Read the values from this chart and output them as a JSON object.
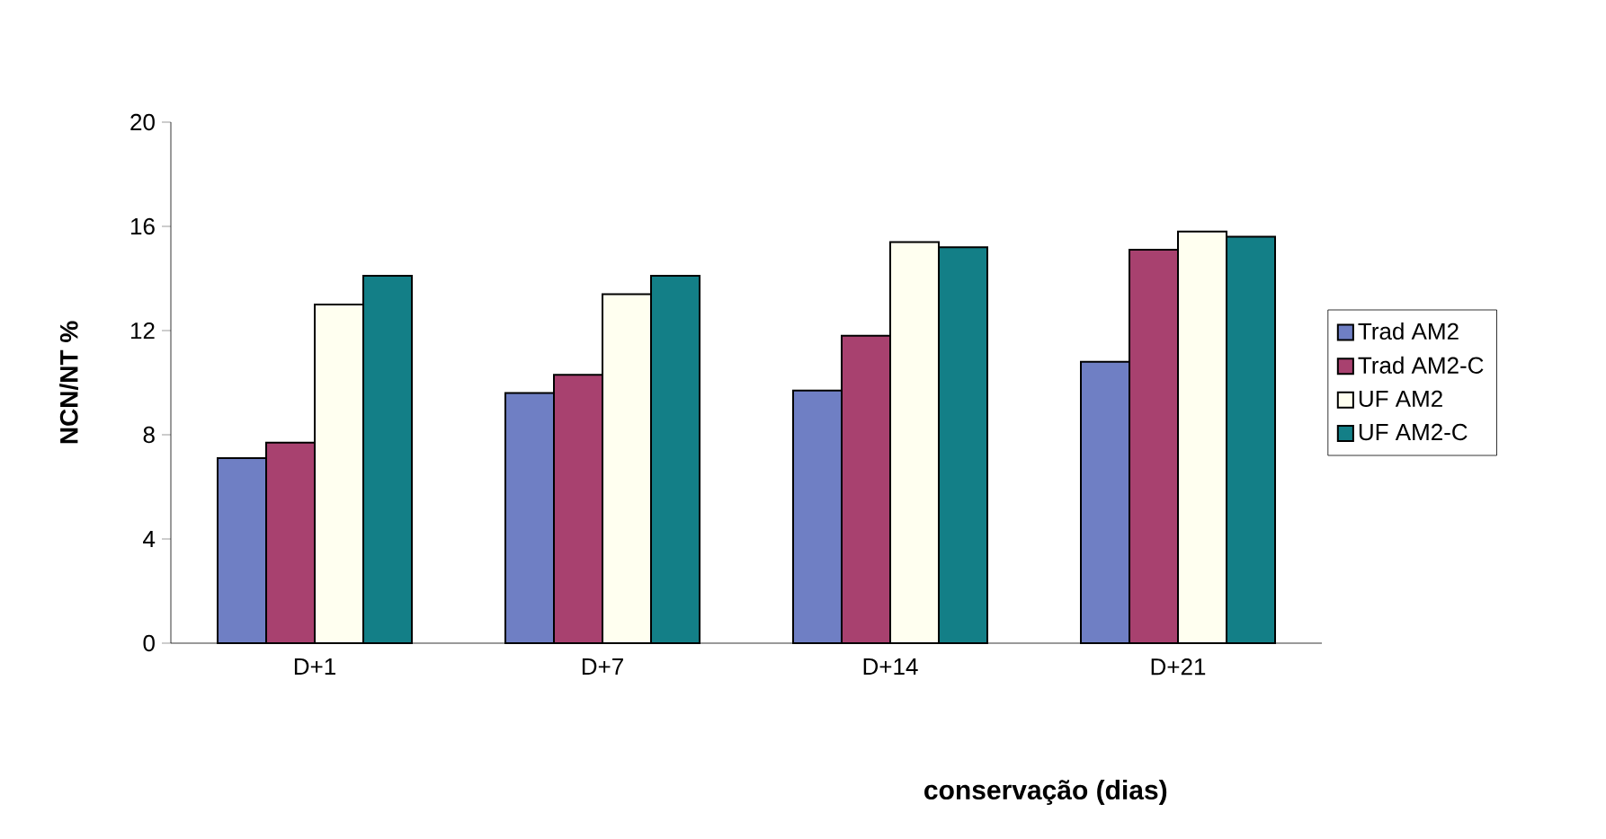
{
  "chart_data": {
    "type": "bar",
    "xlabel": "conservação (dias)",
    "ylabel": "NCN/NT %",
    "categories": [
      "D+1",
      "D+7",
      "D+14",
      "D+21"
    ],
    "series": [
      {
        "name": "Trad AM2",
        "color": "#6f7fc4",
        "values": [
          7.1,
          9.6,
          9.7,
          10.8
        ]
      },
      {
        "name": "Trad AM2-C",
        "color": "#a8416f",
        "values": [
          7.7,
          10.3,
          11.8,
          15.1
        ]
      },
      {
        "name": "UF AM2",
        "color": "#fffff0",
        "values": [
          13.0,
          13.4,
          15.4,
          15.8
        ]
      },
      {
        "name": "UF AM2-C",
        "color": "#137f87",
        "values": [
          14.1,
          14.1,
          15.2,
          15.6
        ]
      }
    ],
    "ylim": [
      0,
      20
    ],
    "yticks": [
      0,
      4,
      8,
      12,
      16,
      20
    ],
    "legend": "right"
  }
}
